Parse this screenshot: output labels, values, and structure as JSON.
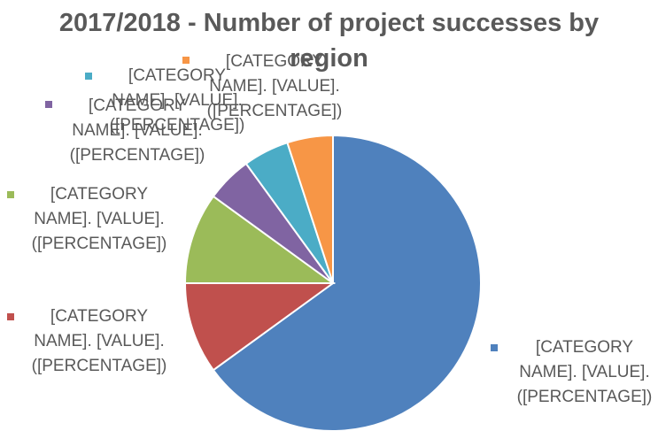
{
  "chart_data": {
    "type": "pie",
    "title": "2017/2018 - Number of project successes by region",
    "categories": [
      null,
      null,
      null,
      null,
      null,
      null
    ],
    "values": [
      65,
      10,
      10,
      5,
      5,
      5
    ],
    "value_labels": [
      "[CATEGORY NAME]. [VALUE]. ([PERCENTAGE])",
      "[CATEGORY NAME]. [VALUE]. ([PERCENTAGE])",
      "[CATEGORY NAME]. [VALUE]. ([PERCENTAGE])",
      "[CATEGORY NAME]. [VALUE]. ([PERCENTAGE])",
      "[CATEGORY NAME]. [VALUE]. ([PERCENTAGE])",
      "[CATEGORY NAME]. [VALUE]. ([PERCENTAGE])"
    ],
    "colors": [
      "#4f81bd",
      "#c0504d",
      "#9bbb59",
      "#8064a2",
      "#4bacc6",
      "#f79646"
    ]
  }
}
